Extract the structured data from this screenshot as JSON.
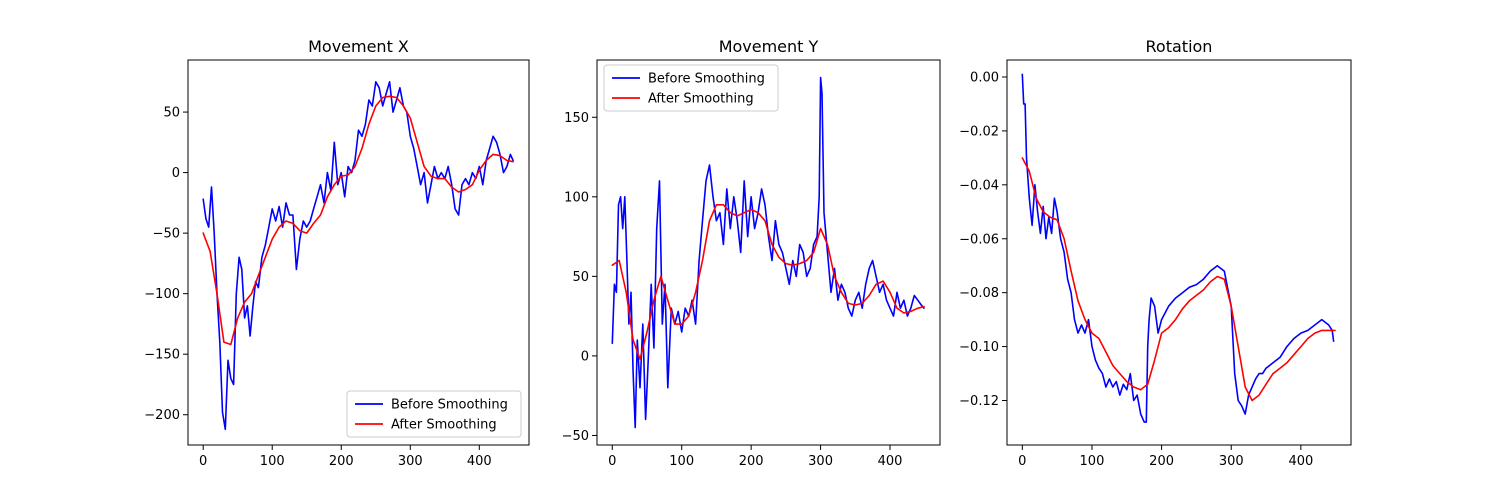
{
  "chart_data": [
    {
      "type": "line",
      "title": "Movement X",
      "xlabel": "",
      "ylabel": "",
      "xlim": [
        -22,
        472
      ],
      "ylim": [
        -225,
        93
      ],
      "xticks": [
        0,
        100,
        200,
        300,
        400
      ],
      "yticks": [
        -200,
        -150,
        -100,
        -50,
        0,
        50
      ],
      "grid": false,
      "legend_position": "lower-right",
      "series": [
        {
          "name": "Before Smoothing",
          "color": "#0000ff",
          "x": [
            0,
            4,
            8,
            12,
            16,
            20,
            24,
            28,
            32,
            36,
            40,
            44,
            48,
            52,
            56,
            60,
            64,
            68,
            72,
            76,
            80,
            85,
            90,
            95,
            100,
            105,
            110,
            115,
            120,
            125,
            130,
            135,
            140,
            145,
            150,
            155,
            160,
            165,
            170,
            175,
            180,
            185,
            190,
            195,
            200,
            205,
            210,
            215,
            220,
            225,
            230,
            235,
            240,
            245,
            250,
            255,
            260,
            265,
            270,
            275,
            280,
            285,
            290,
            295,
            300,
            305,
            310,
            315,
            320,
            325,
            330,
            335,
            340,
            345,
            350,
            355,
            360,
            365,
            370,
            375,
            380,
            385,
            390,
            395,
            400,
            405,
            410,
            415,
            420,
            425,
            430,
            435,
            440,
            445,
            449
          ],
          "values": [
            -22,
            -38,
            -45,
            -12,
            -50,
            -100,
            -140,
            -198,
            -212,
            -155,
            -170,
            -175,
            -100,
            -70,
            -80,
            -120,
            -110,
            -135,
            -110,
            -90,
            -95,
            -70,
            -60,
            -45,
            -30,
            -40,
            -28,
            -45,
            -25,
            -35,
            -35,
            -80,
            -55,
            -40,
            -45,
            -40,
            -30,
            -20,
            -10,
            -25,
            0,
            -15,
            25,
            -10,
            0,
            -20,
            5,
            0,
            10,
            35,
            30,
            40,
            60,
            55,
            75,
            70,
            55,
            65,
            75,
            50,
            60,
            70,
            55,
            50,
            30,
            20,
            5,
            -10,
            0,
            -25,
            -10,
            5,
            -5,
            0,
            -5,
            5,
            -10,
            -30,
            -35,
            -10,
            -5,
            -10,
            0,
            -5,
            5,
            -10,
            10,
            20,
            30,
            25,
            15,
            0,
            5,
            15,
            10
          ]
        },
        {
          "name": "After Smoothing",
          "color": "#ff0000",
          "x": [
            0,
            10,
            20,
            30,
            40,
            50,
            60,
            70,
            80,
            90,
            100,
            110,
            120,
            130,
            140,
            150,
            160,
            170,
            180,
            190,
            200,
            210,
            220,
            230,
            240,
            250,
            260,
            270,
            280,
            290,
            300,
            310,
            320,
            330,
            340,
            350,
            360,
            370,
            380,
            390,
            400,
            410,
            420,
            430,
            440,
            449
          ],
          "values": [
            -50,
            -65,
            -100,
            -140,
            -142,
            -120,
            -107,
            -100,
            -85,
            -70,
            -55,
            -45,
            -40,
            -42,
            -48,
            -50,
            -42,
            -35,
            -20,
            -10,
            -3,
            -2,
            5,
            20,
            40,
            55,
            62,
            63,
            62,
            55,
            45,
            25,
            5,
            -3,
            -5,
            -5,
            -12,
            -16,
            -14,
            -10,
            2,
            10,
            15,
            14,
            10,
            9
          ]
        }
      ]
    },
    {
      "type": "line",
      "title": "Movement Y",
      "xlabel": "",
      "ylabel": "",
      "xlim": [
        -22,
        472
      ],
      "ylim": [
        -56,
        186
      ],
      "xticks": [
        0,
        100,
        200,
        300,
        400
      ],
      "yticks": [
        -50,
        0,
        50,
        100,
        150
      ],
      "grid": false,
      "legend_position": "upper-left",
      "series": [
        {
          "name": "Before Smoothing",
          "color": "#0000ff",
          "x": [
            0,
            3,
            6,
            9,
            12,
            15,
            18,
            21,
            24,
            27,
            30,
            33,
            36,
            40,
            44,
            48,
            52,
            56,
            60,
            64,
            68,
            72,
            76,
            80,
            85,
            90,
            95,
            100,
            105,
            110,
            115,
            120,
            125,
            130,
            135,
            140,
            145,
            150,
            155,
            160,
            165,
            170,
            175,
            180,
            185,
            190,
            195,
            200,
            205,
            210,
            215,
            220,
            225,
            230,
            235,
            240,
            245,
            250,
            255,
            260,
            265,
            270,
            275,
            280,
            285,
            290,
            295,
            298,
            300,
            302,
            305,
            310,
            315,
            320,
            325,
            330,
            335,
            340,
            345,
            350,
            355,
            360,
            365,
            370,
            375,
            380,
            385,
            390,
            395,
            400,
            405,
            410,
            415,
            420,
            425,
            430,
            435,
            440,
            445,
            449
          ],
          "values": [
            8,
            45,
            40,
            95,
            100,
            80,
            100,
            60,
            20,
            40,
            -10,
            -45,
            10,
            -20,
            20,
            -40,
            0,
            45,
            5,
            80,
            110,
            20,
            45,
            -20,
            30,
            20,
            28,
            15,
            30,
            25,
            35,
            20,
            60,
            85,
            110,
            120,
            100,
            85,
            90,
            70,
            105,
            80,
            100,
            85,
            65,
            110,
            75,
            100,
            80,
            90,
            105,
            95,
            75,
            60,
            85,
            70,
            65,
            55,
            45,
            60,
            50,
            70,
            65,
            50,
            55,
            70,
            75,
            100,
            175,
            165,
            90,
            65,
            40,
            55,
            35,
            45,
            40,
            30,
            25,
            35,
            40,
            30,
            45,
            55,
            60,
            50,
            40,
            45,
            35,
            30,
            25,
            40,
            30,
            35,
            25,
            30,
            38,
            35,
            32,
            30
          ]
        },
        {
          "name": "After Smoothing",
          "color": "#ff0000",
          "x": [
            0,
            10,
            20,
            30,
            40,
            50,
            60,
            70,
            80,
            90,
            100,
            110,
            120,
            130,
            140,
            150,
            160,
            170,
            180,
            190,
            200,
            210,
            220,
            230,
            240,
            250,
            260,
            270,
            280,
            290,
            300,
            310,
            320,
            330,
            340,
            350,
            360,
            370,
            380,
            390,
            400,
            410,
            420,
            430,
            440,
            449
          ],
          "values": [
            57,
            60,
            40,
            10,
            -2,
            15,
            35,
            50,
            35,
            20,
            20,
            25,
            40,
            60,
            85,
            95,
            95,
            90,
            88,
            90,
            92,
            90,
            85,
            70,
            62,
            58,
            57,
            58,
            60,
            65,
            80,
            70,
            50,
            40,
            33,
            32,
            33,
            38,
            45,
            47,
            40,
            30,
            27,
            28,
            30,
            31
          ]
        }
      ]
    },
    {
      "type": "line",
      "title": "Rotation",
      "xlabel": "",
      "ylabel": "",
      "xlim": [
        -22,
        472
      ],
      "ylim": [
        -0.1365,
        0.0063
      ],
      "xticks": [
        0,
        100,
        200,
        300,
        400
      ],
      "yticks": [
        0.0,
        -0.02,
        -0.04,
        -0.06,
        -0.08,
        -0.1,
        -0.12
      ],
      "ytick_labels": [
        "0.00",
        "−0.02",
        "−0.04",
        "−0.06",
        "−0.08",
        "−0.10",
        "−0.12"
      ],
      "grid": false,
      "legend_position": "none",
      "series": [
        {
          "name": "Before Smoothing",
          "color": "#0000ff",
          "x": [
            0,
            2,
            4,
            6,
            10,
            14,
            18,
            22,
            26,
            30,
            34,
            38,
            42,
            46,
            50,
            55,
            60,
            65,
            70,
            75,
            80,
            85,
            90,
            95,
            100,
            105,
            110,
            115,
            120,
            125,
            130,
            135,
            140,
            145,
            150,
            155,
            160,
            165,
            170,
            175,
            178,
            180,
            182,
            185,
            190,
            195,
            200,
            210,
            220,
            230,
            240,
            250,
            260,
            270,
            280,
            290,
            300,
            305,
            310,
            315,
            320,
            325,
            330,
            335,
            340,
            345,
            350,
            360,
            370,
            380,
            390,
            400,
            410,
            420,
            430,
            440,
            445,
            447
          ],
          "values": [
            0.001,
            -0.01,
            -0.01,
            -0.03,
            -0.045,
            -0.055,
            -0.04,
            -0.05,
            -0.058,
            -0.048,
            -0.06,
            -0.052,
            -0.058,
            -0.045,
            -0.05,
            -0.06,
            -0.065,
            -0.075,
            -0.08,
            -0.09,
            -0.095,
            -0.092,
            -0.095,
            -0.09,
            -0.1,
            -0.105,
            -0.108,
            -0.11,
            -0.115,
            -0.112,
            -0.115,
            -0.113,
            -0.118,
            -0.114,
            -0.116,
            -0.11,
            -0.12,
            -0.118,
            -0.125,
            -0.128,
            -0.128,
            -0.1,
            -0.09,
            -0.082,
            -0.085,
            -0.095,
            -0.09,
            -0.085,
            -0.082,
            -0.08,
            -0.078,
            -0.077,
            -0.075,
            -0.072,
            -0.07,
            -0.072,
            -0.085,
            -0.11,
            -0.12,
            -0.122,
            -0.125,
            -0.118,
            -0.115,
            -0.112,
            -0.11,
            -0.11,
            -0.108,
            -0.106,
            -0.104,
            -0.1,
            -0.097,
            -0.095,
            -0.094,
            -0.092,
            -0.09,
            -0.092,
            -0.094,
            -0.098
          ]
        },
        {
          "name": "After Smoothing",
          "color": "#ff0000",
          "x": [
            0,
            10,
            20,
            30,
            40,
            50,
            60,
            70,
            80,
            90,
            100,
            110,
            120,
            130,
            140,
            150,
            160,
            170,
            180,
            190,
            200,
            210,
            220,
            230,
            240,
            250,
            260,
            270,
            280,
            290,
            300,
            310,
            320,
            330,
            340,
            350,
            360,
            370,
            380,
            390,
            400,
            410,
            420,
            430,
            440,
            449
          ],
          "values": [
            -0.03,
            -0.035,
            -0.045,
            -0.05,
            -0.052,
            -0.053,
            -0.06,
            -0.072,
            -0.083,
            -0.09,
            -0.095,
            -0.097,
            -0.102,
            -0.107,
            -0.11,
            -0.113,
            -0.115,
            -0.116,
            -0.114,
            -0.105,
            -0.095,
            -0.093,
            -0.09,
            -0.086,
            -0.083,
            -0.081,
            -0.079,
            -0.076,
            -0.074,
            -0.075,
            -0.085,
            -0.1,
            -0.115,
            -0.12,
            -0.118,
            -0.114,
            -0.11,
            -0.108,
            -0.106,
            -0.103,
            -0.1,
            -0.097,
            -0.095,
            -0.094,
            -0.094,
            -0.094
          ]
        }
      ]
    }
  ]
}
